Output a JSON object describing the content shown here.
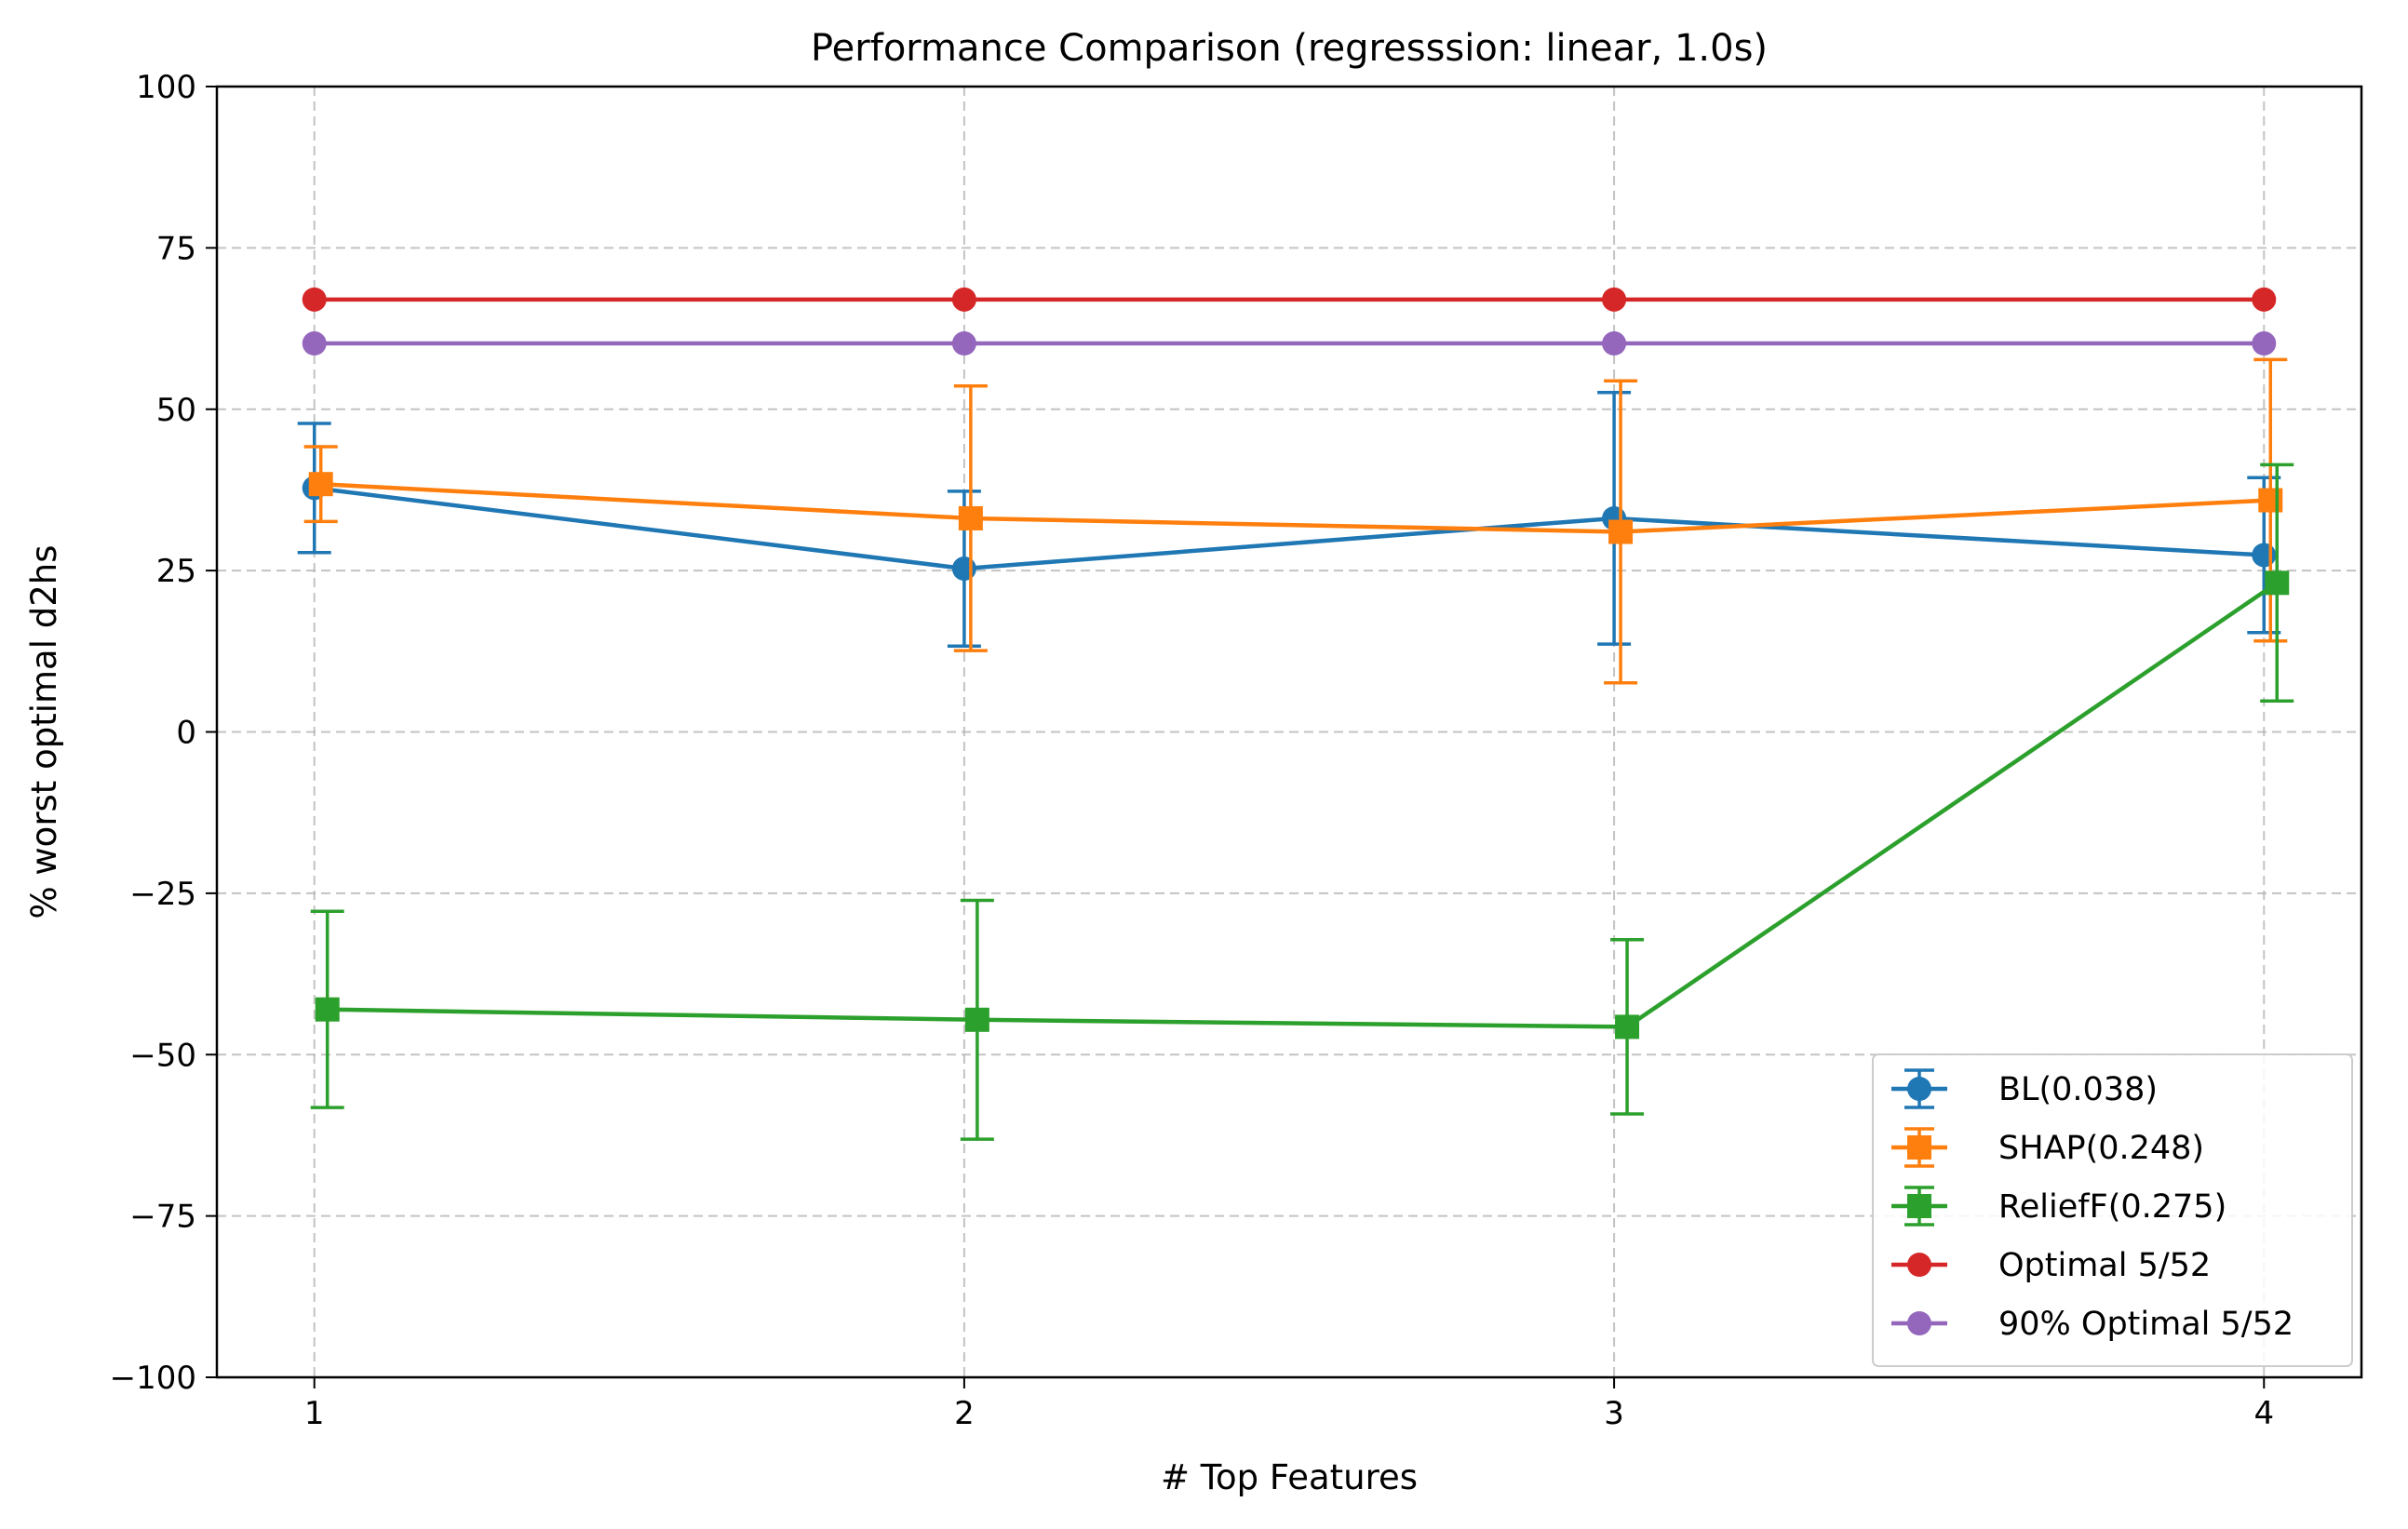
{
  "chart_data": {
    "type": "line",
    "title": "Performance Comparison (regresssion: linear, 1.0s)",
    "xlabel": "# Top Features",
    "ylabel": "% worst optimal d2hs",
    "x": [
      1,
      2,
      3,
      4
    ],
    "xticks": [
      "1",
      "2",
      "3",
      "4"
    ],
    "xlim": [
      0.85,
      4.15
    ],
    "ylim": [
      -100,
      100
    ],
    "yticks": [
      -100,
      -75,
      -50,
      -25,
      0,
      25,
      50,
      75,
      100
    ],
    "ytick_labels": [
      "−100",
      "−75",
      "−50",
      "−25",
      "0",
      "25",
      "50",
      "75",
      "100"
    ],
    "grid": true,
    "legend_position": "lower right",
    "series": [
      {
        "name": "BL(0.038)",
        "color": "#1f77b4",
        "marker": "circle",
        "error_bars": true,
        "x_offset": 0,
        "values": [
          37.8,
          25.3,
          33.1,
          27.4
        ],
        "lower": [
          27.8,
          13.3,
          13.6,
          15.4
        ],
        "upper": [
          47.8,
          37.3,
          52.6,
          39.4
        ]
      },
      {
        "name": "SHAP(0.248)",
        "color": "#ff7f0e",
        "marker": "square",
        "error_bars": true,
        "x_offset": 0.01,
        "values": [
          38.4,
          33.1,
          31.0,
          35.9
        ],
        "lower": [
          32.6,
          12.6,
          7.6,
          14.1
        ],
        "upper": [
          44.2,
          53.6,
          54.4,
          57.7
        ]
      },
      {
        "name": "ReliefF(0.275)",
        "color": "#2ca02c",
        "marker": "square",
        "error_bars": true,
        "x_offset": 0.02,
        "values": [
          -43.0,
          -44.6,
          -45.7,
          23.1
        ],
        "lower": [
          -58.2,
          -63.1,
          -59.2,
          4.8
        ],
        "upper": [
          -27.8,
          -26.1,
          -32.2,
          41.4
        ]
      },
      {
        "name": "Optimal 5/52",
        "color": "#d62728",
        "marker": "circle",
        "error_bars": false,
        "x_offset": 0,
        "values": [
          67.0,
          67.0,
          67.0,
          67.0
        ]
      },
      {
        "name": "90% Optimal 5/52",
        "color": "#9467bd",
        "marker": "circle",
        "error_bars": false,
        "x_offset": 0,
        "values": [
          60.2,
          60.2,
          60.2,
          60.2
        ]
      }
    ]
  }
}
